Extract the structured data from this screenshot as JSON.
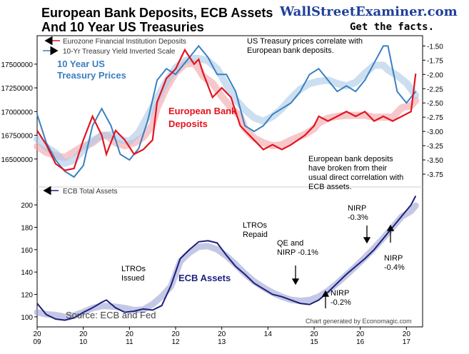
{
  "header": {
    "title_line1": "European Bank Deposits, ECB Assets",
    "title_line2": "And 10 Year US Treasuries",
    "brand": "WallStreetExaminer.com",
    "tagline": "Get the facts."
  },
  "colors": {
    "deposits": "#e3141f",
    "deposits_trend": "#f2a3a8",
    "treasury": "#3a7fc1",
    "treasury_trend": "#a9c9e8",
    "ecb": "#1c1f7a",
    "ecb_trend": "#9fa3d4",
    "brand": "#1f3f9a"
  },
  "notes": {
    "top_left_1": "10 Year US",
    "top_left_2": "Treasury Prices",
    "deposits_1": "European Bank",
    "deposits_2": "Deposits",
    "correlate_1": "US Treasury prices correlate with",
    "correlate_2": "European bank deposits.",
    "broken_1": "European bank deposits",
    "broken_2": "have broken from their",
    "broken_3": "usual direct correlation with",
    "broken_4": "ECB assets.",
    "ecb_assets": "ECB Assets",
    "source": "Source: ECB and Fed",
    "generated": "Chart generated by Economagic.com"
  },
  "chart_data": [
    {
      "type": "line",
      "title": "European Bank Deposits, ECB Assets And 10 Year US Treasuries",
      "legend": [
        {
          "name": "Eurozone Financial Institution Deposits",
          "axis": "left",
          "arrow": "left"
        },
        {
          "name": "10-Yr Treasury Yield Inverted Scale",
          "axis": "right",
          "arrow": "right"
        }
      ],
      "left_ylim": [
        16250000,
        17800000
      ],
      "left_ticks": [
        "16500000",
        "16750000",
        "17000000",
        "17250000",
        "17500000"
      ],
      "right_ylim": [
        -3.9,
        -1.32
      ],
      "right_ticks": [
        "-1.50",
        "-1.75",
        "-2.00",
        "-2.25",
        "-2.50",
        "-2.75",
        "-3.00",
        "-3.25",
        "-3.50",
        "-3.75"
      ],
      "series": [
        {
          "name": "Eurozone Financial Institution Deposits",
          "axis": "left",
          "x": [
            2009.0,
            2009.2,
            2009.4,
            2009.6,
            2009.8,
            2010.0,
            2010.2,
            2010.4,
            2010.5,
            2010.7,
            2010.9,
            2011.1,
            2011.3,
            2011.5,
            2011.6,
            2011.8,
            2012.0,
            2012.2,
            2012.4,
            2012.5,
            2012.6,
            2012.8,
            2013.0,
            2013.2,
            2013.4,
            2013.5,
            2013.7,
            2013.9,
            2014.1,
            2014.3,
            2014.5,
            2014.8,
            2015.0,
            2015.1,
            2015.3,
            2015.5,
            2015.7,
            2015.9,
            2016.1,
            2016.3,
            2016.5,
            2016.7,
            2016.9,
            2017.1,
            2017.2
          ],
          "values": [
            16800000,
            16650000,
            16450000,
            16380000,
            16400000,
            16700000,
            16950000,
            16750000,
            16550000,
            16800000,
            16700000,
            16550000,
            16600000,
            16700000,
            17100000,
            17350000,
            17450000,
            17650000,
            17500000,
            17550000,
            17400000,
            17150000,
            17250000,
            17150000,
            16850000,
            16800000,
            16700000,
            16600000,
            16650000,
            16600000,
            16650000,
            16750000,
            16850000,
            16950000,
            16900000,
            16950000,
            17000000,
            16950000,
            17000000,
            16900000,
            16950000,
            16900000,
            16950000,
            17000000,
            17400000
          ]
        },
        {
          "name": "10-Yr Treasury Yield Inverted Scale",
          "axis": "right",
          "x": [
            2009.0,
            2009.2,
            2009.4,
            2009.6,
            2009.8,
            2010.0,
            2010.2,
            2010.4,
            2010.6,
            2010.8,
            2011.0,
            2011.2,
            2011.4,
            2011.6,
            2011.8,
            2012.0,
            2012.2,
            2012.4,
            2012.5,
            2012.7,
            2012.9,
            2013.1,
            2013.3,
            2013.5,
            2013.7,
            2013.9,
            2014.1,
            2014.3,
            2014.5,
            2014.7,
            2014.9,
            2015.1,
            2015.3,
            2015.5,
            2015.7,
            2015.9,
            2016.1,
            2016.3,
            2016.5,
            2016.6,
            2016.8,
            2017.0,
            2017.2
          ],
          "values": [
            -2.7,
            -3.2,
            -3.5,
            -3.7,
            -3.8,
            -3.6,
            -2.9,
            -2.6,
            -2.9,
            -3.4,
            -3.5,
            -3.3,
            -2.8,
            -2.1,
            -1.9,
            -2.0,
            -1.8,
            -1.6,
            -1.5,
            -1.7,
            -2.0,
            -2.0,
            -2.3,
            -2.9,
            -3.0,
            -2.9,
            -2.7,
            -2.6,
            -2.5,
            -2.3,
            -2.0,
            -1.9,
            -2.1,
            -2.3,
            -2.2,
            -2.3,
            -2.1,
            -1.8,
            -1.5,
            -1.5,
            -2.3,
            -2.5,
            -2.3
          ]
        }
      ]
    },
    {
      "type": "line",
      "legend": [
        {
          "name": "ECB Total Assets",
          "arrow": "left"
        }
      ],
      "ylim": [
        91,
        216
      ],
      "y_ticks": [
        "100",
        "120",
        "140",
        "160",
        "180",
        "200"
      ],
      "x_ticks": [
        "20\n09",
        "20\n10",
        "20\n11",
        "20\n12",
        "20\n13",
        "14",
        "20\n15",
        "20\n16",
        "20\n17"
      ],
      "series": [
        {
          "name": "ECB Total Assets",
          "x": [
            2009.0,
            2009.2,
            2009.4,
            2009.6,
            2009.8,
            2010.0,
            2010.2,
            2010.4,
            2010.5,
            2010.7,
            2010.9,
            2011.1,
            2011.3,
            2011.5,
            2011.7,
            2011.9,
            2012.0,
            2012.1,
            2012.3,
            2012.5,
            2012.7,
            2012.9,
            2013.1,
            2013.3,
            2013.5,
            2013.7,
            2013.9,
            2014.1,
            2014.3,
            2014.5,
            2014.7,
            2014.9,
            2015.1,
            2015.3,
            2015.5,
            2015.7,
            2015.9,
            2016.1,
            2016.3,
            2016.5,
            2016.7,
            2016.9,
            2017.1,
            2017.2
          ],
          "values": [
            112,
            102,
            98,
            97,
            99,
            104,
            108,
            113,
            115,
            108,
            104,
            105,
            107,
            106,
            110,
            128,
            140,
            152,
            160,
            167,
            168,
            166,
            155,
            145,
            138,
            130,
            125,
            120,
            118,
            115,
            112,
            111,
            115,
            122,
            130,
            138,
            145,
            152,
            160,
            170,
            180,
            190,
            200,
            208
          ]
        }
      ],
      "annotations": [
        "LTROs\nIssued",
        "LTROs\nRepaid",
        "QE and\nNIRP -0.1%",
        "NIRP\n-0.2%",
        "NIRP\n-0.3%",
        "NIRP\n-0.4%"
      ]
    }
  ]
}
